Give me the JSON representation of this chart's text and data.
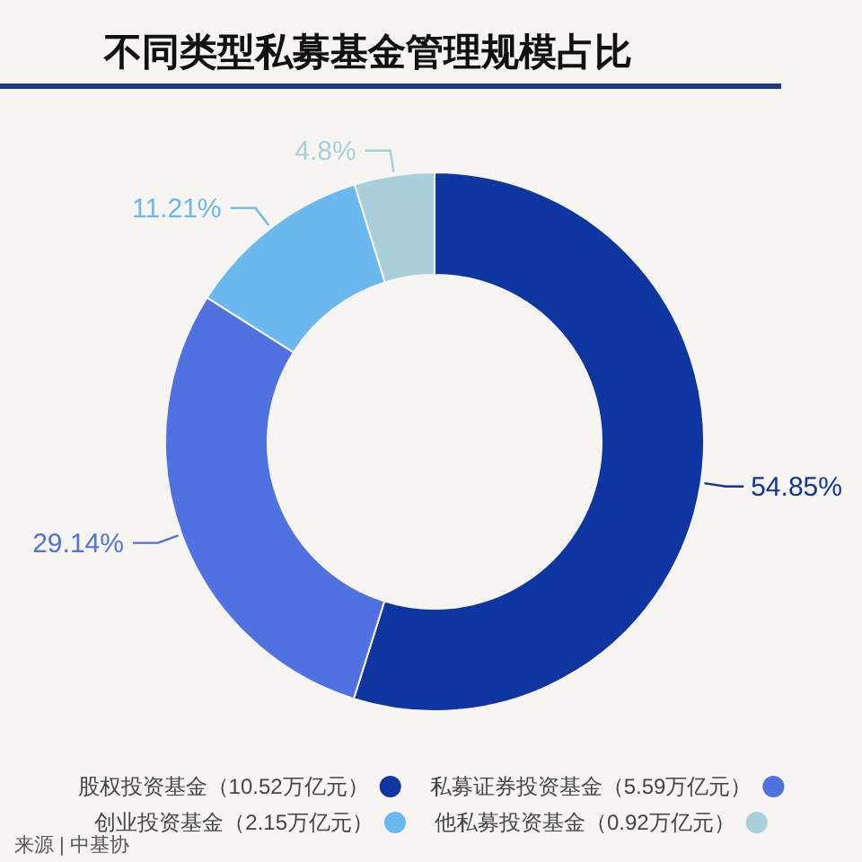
{
  "chart_data": {
    "type": "donut",
    "title": "不同类型私募基金管理规模占比",
    "categories": [
      "股权投资基金（10.52万亿元）",
      "私募证券投资基金（5.59万亿元）",
      "创业投资基金（2.15万亿元）",
      "他私募投资基金（0.92万亿元）"
    ],
    "values": [
      54.85,
      29.14,
      11.21,
      4.8
    ],
    "colors": [
      "#0f36a0",
      "#5071e0",
      "#6bb8ef",
      "#a9cfdb"
    ],
    "value_labels": [
      "54.85%",
      "29.14%",
      "11.21%",
      "4.8%"
    ],
    "legend": "bottom",
    "annotations": [
      "来源 | 中基协"
    ]
  }
}
